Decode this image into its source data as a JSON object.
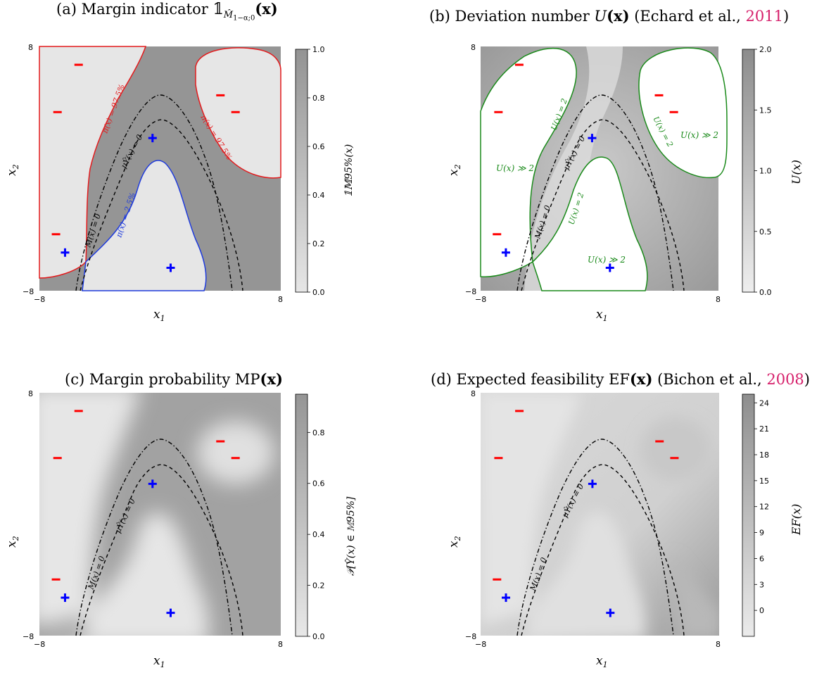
{
  "chart_data": [
    {
      "id": "a",
      "type": "heatmap",
      "title_prefix": "(a) Margin indicator ",
      "title_symbol": "𝟙",
      "title_sub": "M̂",
      "title_sub2": "1−α;0",
      "title_arg": "(x)",
      "xlabel": "x",
      "xlabel_sub": "1",
      "ylabel": "x",
      "ylabel_sub": "2",
      "xlim": [
        -8,
        8
      ],
      "ylim": [
        -8,
        8
      ],
      "x_ticks": [
        "−8",
        "8"
      ],
      "y_ticks": [
        "−8",
        "8"
      ],
      "colorbar": {
        "label": "𝟙𝕄95%(x)",
        "range": [
          0.0,
          1.0
        ],
        "ticks": [
          "0.0",
          "0.2",
          "0.4",
          "0.6",
          "0.8",
          "1.0"
        ]
      },
      "annotations": [
        "π(x) = 97.5%",
        "π(x) = 97.5%",
        "π(x) = 2.5%",
        "M(x) = 0",
        "μŶ(x) = 0"
      ],
      "points_minus": [
        [
          -5.4,
          6.8
        ],
        [
          -6.8,
          3.7
        ],
        [
          -6.9,
          -4.3
        ],
        [
          4.0,
          4.8
        ],
        [
          5.0,
          3.7
        ]
      ],
      "points_plus": [
        [
          -0.5,
          2.0
        ],
        [
          -6.3,
          -5.5
        ],
        [
          0.7,
          -6.5
        ]
      ]
    },
    {
      "id": "b",
      "type": "heatmap",
      "title_prefix": "(b) Deviation number ",
      "title_u": "U",
      "title_arg": "(x)",
      "title_cite_pre": " (Echard et al., ",
      "title_cite": "2011",
      "title_cite_post": ")",
      "xlabel": "x",
      "xlabel_sub": "1",
      "ylabel": "x",
      "ylabel_sub": "2",
      "xlim": [
        -8,
        8
      ],
      "ylim": [
        -8,
        8
      ],
      "x_ticks": [
        "−8",
        "8"
      ],
      "y_ticks": [
        "−8",
        "8"
      ],
      "colorbar": {
        "label": "U(x)",
        "range": [
          0.0,
          2.0
        ],
        "ticks": [
          "0.0",
          "0.5",
          "1.0",
          "1.5",
          "2.0"
        ]
      },
      "annotations": [
        "U(x) ≫ 2",
        "U(x) ≫ 2",
        "U(x) ≫ 2",
        "U(x) = 2",
        "U(x) = 2",
        "U(x) = 2",
        "M(x) = 0",
        "μŶ(x) = 0"
      ],
      "points_minus": [
        [
          -5.4,
          6.8
        ],
        [
          -6.8,
          3.7
        ],
        [
          -6.9,
          -4.3
        ],
        [
          4.0,
          4.8
        ],
        [
          5.0,
          3.7
        ]
      ],
      "points_plus": [
        [
          -0.5,
          2.0
        ],
        [
          -6.3,
          -5.5
        ],
        [
          0.7,
          -6.5
        ]
      ]
    },
    {
      "id": "c",
      "type": "heatmap",
      "title_prefix": "(c) Margin probability MP",
      "title_arg": "(x)",
      "xlabel": "x",
      "xlabel_sub": "1",
      "ylabel": "x",
      "ylabel_sub": "2",
      "xlim": [
        -8,
        8
      ],
      "ylim": [
        -8,
        8
      ],
      "x_ticks": [
        "−8",
        "8"
      ],
      "y_ticks": [
        "−8",
        "8"
      ],
      "colorbar": {
        "label": "𝒫[Ŷ(x) ∈ 𝕄95%]",
        "range": [
          0.0,
          0.95
        ],
        "ticks": [
          "0.0",
          "0.2",
          "0.4",
          "0.6",
          "0.8"
        ]
      },
      "annotations": [
        "M(x) = 0",
        "μŶ(x) = 0"
      ],
      "points_minus": [
        [
          -5.4,
          6.8
        ],
        [
          -6.8,
          3.7
        ],
        [
          -6.9,
          -4.3
        ],
        [
          4.0,
          4.8
        ],
        [
          5.0,
          3.7
        ]
      ],
      "points_plus": [
        [
          -0.5,
          2.0
        ],
        [
          -6.3,
          -5.5
        ],
        [
          0.7,
          -6.5
        ]
      ]
    },
    {
      "id": "d",
      "type": "heatmap",
      "title_prefix": "(d) Expected feasibility EF",
      "title_arg": "(x)",
      "title_cite_pre": " (Bichon et al., ",
      "title_cite": "2008",
      "title_cite_post": ")",
      "xlabel": "x",
      "xlabel_sub": "1",
      "ylabel": "x",
      "ylabel_sub": "2",
      "xlim": [
        -8,
        8
      ],
      "ylim": [
        -8,
        8
      ],
      "x_ticks": [
        "−8",
        "8"
      ],
      "y_ticks": [
        "−8",
        "8"
      ],
      "colorbar": {
        "label": "EF(x)",
        "range": [
          -3,
          25
        ],
        "ticks": [
          "0",
          "3",
          "6",
          "9",
          "12",
          "15",
          "18",
          "21",
          "24"
        ]
      },
      "annotations": [
        "M(x) = 0",
        "μŶ(x) = 0"
      ],
      "points_minus": [
        [
          -5.4,
          6.8
        ],
        [
          -6.8,
          3.7
        ],
        [
          -6.9,
          -4.3
        ],
        [
          4.0,
          4.8
        ],
        [
          5.0,
          3.7
        ]
      ],
      "points_plus": [
        [
          -0.5,
          2.0
        ],
        [
          -6.3,
          -5.5
        ],
        [
          0.7,
          -6.5
        ]
      ]
    }
  ],
  "colors": {
    "minus": "#ff0000",
    "plus": "#0000ff",
    "red_contour": "#e31a1c",
    "blue_contour": "#1f3bdc",
    "green_contour": "#1a8a1a",
    "dark_fill": "#979797",
    "light_fill": "#e6e6e6"
  }
}
